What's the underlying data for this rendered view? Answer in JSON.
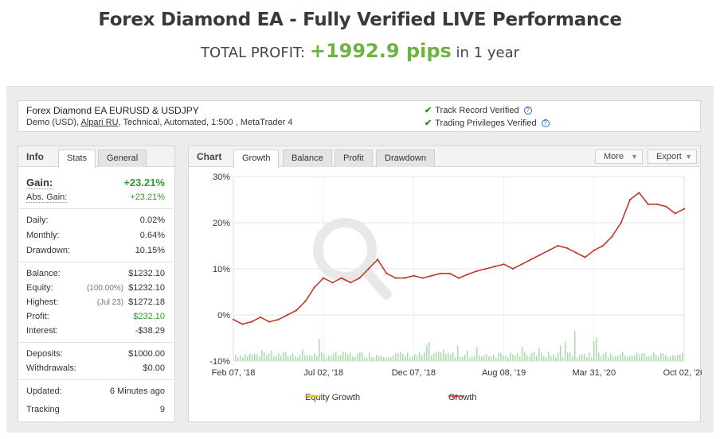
{
  "header": {
    "title": "Forex Diamond EA - Fully Verified LIVE Performance",
    "total_label": "TOTAL PROFIT:",
    "total_value": "+1992.9 pips",
    "period": "in 1 year"
  },
  "account": {
    "name": "Forex Diamond EA EURUSD & USDJPY",
    "details_prefix": "Demo (USD),",
    "broker": "Alpari RU",
    "details_suffix": ", Technical, Automated, 1:500 , MetaTrader 4",
    "track_record": "Track Record Verified",
    "trading_privileges": "Trading Privileges Verified"
  },
  "info": {
    "title": "Info",
    "tabs": [
      "Stats",
      "General"
    ],
    "gain_label": "Gain:",
    "gain_value": "+23.21%",
    "abs_gain_label": "Abs. Gain:",
    "abs_gain_value": "+23.21%",
    "daily_label": "Daily:",
    "daily_value": "0.02%",
    "monthly_label": "Monthly:",
    "monthly_value": "0.64%",
    "drawdown_label": "Drawdown:",
    "drawdown_value": "10.15%",
    "balance_label": "Balance:",
    "balance_value": "$1232.10",
    "equity_label": "Equity:",
    "equity_note": "(100.00%)",
    "equity_value": "$1232.10",
    "highest_label": "Highest:",
    "highest_note": "(Jul 23)",
    "highest_value": "$1272.18",
    "profit_label": "Profit:",
    "profit_value": "$232.10",
    "interest_label": "Interest:",
    "interest_value": "-$38.29",
    "deposits_label": "Deposits:",
    "deposits_value": "$1000.00",
    "withdrawals_label": "Withdrawals:",
    "withdrawals_value": "$0.00",
    "updated_label": "Updated:",
    "updated_value": "6 Minutes ago",
    "tracking_label": "Tracking",
    "tracking_value": "9"
  },
  "chart_panel": {
    "title": "Chart",
    "tabs": [
      "Growth",
      "Balance",
      "Profit",
      "Drawdown"
    ],
    "more_label": "More",
    "export_label": "Export"
  },
  "colors": {
    "growth_line": "#c0392b",
    "equity_line": "#f5c518",
    "volume_bars": "#a8dca8",
    "accent_green": "#6db33f"
  },
  "chart_data": {
    "type": "line",
    "xlabels": [
      "Feb 07, '18",
      "Jul 02, '18",
      "Dec 07, '18",
      "Aug 08, '19",
      "Mar 31, '20",
      "Oct 02, '20"
    ],
    "ytick_labels": [
      "30%",
      "20%",
      "10%",
      "0%",
      "-10%"
    ],
    "ylim": [
      -10,
      30
    ],
    "legend": [
      "Equity Growth",
      "Growth"
    ],
    "series": [
      {
        "name": "Growth",
        "x": [
          0,
          2,
          4,
          6,
          8,
          10,
          12,
          14,
          16,
          18,
          20,
          22,
          24,
          26,
          28,
          30,
          32,
          34,
          36,
          38,
          40,
          42,
          44,
          46,
          48,
          50,
          52,
          54,
          56,
          58,
          60,
          62,
          64,
          66,
          68,
          70,
          72,
          74,
          76,
          78,
          80,
          82,
          84,
          86,
          88,
          90,
          92,
          94,
          96,
          98,
          100
        ],
        "values": [
          -1,
          -2,
          -1.5,
          -0.5,
          -1.5,
          -1,
          0,
          1,
          3,
          6,
          8,
          7,
          8,
          7,
          8,
          10,
          12,
          9,
          8,
          8,
          8.5,
          8,
          8.5,
          9,
          9,
          8,
          8.8,
          9.5,
          10,
          10.5,
          11,
          10,
          11,
          12,
          13,
          14,
          15,
          14.5,
          13.5,
          12.5,
          14,
          15,
          17,
          20,
          25,
          26.5,
          24,
          24,
          23.5,
          22,
          23
        ]
      }
    ],
    "annotation": "secondary volume bars along the bottom (-10% baseline)"
  }
}
